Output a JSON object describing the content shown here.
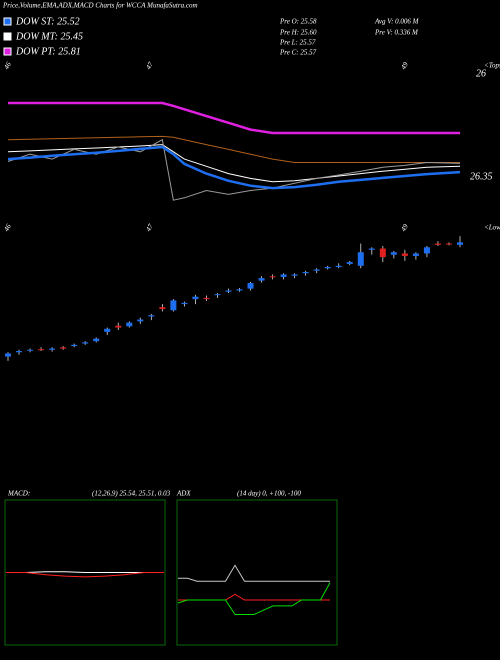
{
  "chart_data": [
    {
      "type": "line",
      "title": "Price,Volume,EMA,ADX,MACD Charts for WCCA MunafaSutra.com",
      "info": [
        "Pre  O: 25.58",
        "Pre  H: 25.60",
        "Pre  L: 25.57",
        "Pre  C: 25.57",
        "Avg V: 0.006  M",
        "Pre  V: 0.336  M"
      ],
      "x_labels": [
        "46",
        "47",
        "49"
      ],
      "right_labels": [
        "<Tops",
        "26",
        "26.35"
      ],
      "x": [
        0,
        2,
        4,
        6,
        8,
        10,
        12,
        14,
        15,
        16,
        18,
        20,
        22,
        24,
        26,
        28,
        30,
        32,
        34,
        36,
        38,
        41
      ],
      "ylim": [
        24.0,
        27.0
      ],
      "series": [
        {
          "name": "DOW PT: 25.81",
          "color": "#e020e0",
          "values": [
            26.11,
            26.11,
            26.11,
            26.11,
            26.11,
            26.11,
            26.11,
            26.11,
            26.05,
            25.98,
            25.84,
            25.7,
            25.56,
            25.49,
            25.49,
            25.49,
            25.49,
            25.49,
            25.49,
            25.49,
            25.49,
            25.49
          ]
        },
        {
          "color": "#b0601a",
          "values": [
            25.35,
            25.36,
            25.37,
            25.38,
            25.39,
            25.4,
            25.41,
            25.42,
            25.4,
            25.35,
            25.25,
            25.15,
            25.05,
            24.95,
            24.88,
            24.88,
            24.88,
            24.88,
            24.88,
            24.88,
            24.88,
            24.88
          ]
        },
        {
          "name": "DOW MT: 25.45",
          "color": "#ffffff",
          "values": [
            25.1,
            25.12,
            25.14,
            25.16,
            25.18,
            25.2,
            25.22,
            25.25,
            25.1,
            24.95,
            24.8,
            24.65,
            24.55,
            24.48,
            24.5,
            24.55,
            24.6,
            24.65,
            24.7,
            24.74,
            24.78,
            24.8
          ]
        },
        {
          "color": "#9a9a9a",
          "values": [
            24.9,
            25.05,
            24.95,
            25.15,
            25.05,
            25.2,
            25.1,
            25.35,
            24.1,
            24.15,
            24.3,
            24.22,
            24.3,
            24.35,
            24.45,
            24.55,
            24.62,
            24.7,
            24.78,
            24.82,
            24.88,
            24.86
          ]
        },
        {
          "name": "DOW ST: 25.52",
          "color": "#1e6ef0",
          "values": [
            24.95,
            24.98,
            25.02,
            25.05,
            25.08,
            25.12,
            25.16,
            25.2,
            25.05,
            24.85,
            24.65,
            24.5,
            24.4,
            24.35,
            24.37,
            24.42,
            24.48,
            24.52,
            24.56,
            24.6,
            24.64,
            24.68
          ]
        }
      ]
    },
    {
      "type": "candlestick",
      "x_labels": [
        "46",
        "47",
        "49"
      ],
      "right_labels": [
        "<Lows"
      ],
      "ylim": [
        24.2,
        26.5
      ],
      "up_color": "#1e6ef0",
      "down_color": "#e02020",
      "open": [
        24.45,
        24.52,
        24.55,
        24.57,
        24.56,
        24.6,
        24.62,
        24.66,
        24.7,
        24.85,
        24.95,
        24.94,
        25.02,
        25.1,
        25.25,
        25.2,
        25.3,
        25.38,
        25.4,
        25.45,
        25.5,
        25.52,
        25.55,
        25.68,
        25.75,
        25.74,
        25.76,
        25.8,
        25.84,
        25.88,
        25.9,
        25.95,
        25.92,
        26.18,
        26.2,
        26.1,
        26.12,
        26.08,
        26.12,
        26.28,
        26.28,
        26.26
      ],
      "high": [
        24.52,
        24.56,
        24.58,
        24.6,
        24.6,
        24.62,
        24.66,
        24.7,
        24.76,
        24.92,
        25.0,
        25.02,
        25.08,
        25.14,
        25.3,
        25.38,
        25.34,
        25.45,
        25.44,
        25.48,
        25.55,
        25.56,
        25.66,
        25.75,
        25.78,
        25.8,
        25.8,
        25.84,
        25.88,
        25.92,
        25.96,
        26.0,
        26.28,
        26.22,
        26.24,
        26.16,
        26.18,
        26.14,
        26.24,
        26.32,
        26.3,
        26.4
      ],
      "low": [
        24.38,
        24.48,
        24.52,
        24.54,
        24.53,
        24.56,
        24.6,
        24.64,
        24.68,
        24.8,
        24.88,
        24.92,
        24.98,
        25.04,
        25.18,
        25.18,
        25.26,
        25.3,
        25.35,
        25.4,
        25.48,
        25.5,
        25.52,
        25.65,
        25.7,
        25.7,
        25.72,
        25.76,
        25.8,
        25.86,
        25.88,
        25.93,
        25.88,
        26.1,
        25.98,
        26.04,
        26.0,
        26.02,
        26.06,
        26.24,
        26.25,
        26.22
      ],
      "close": [
        24.5,
        24.54,
        24.56,
        24.56,
        24.58,
        24.58,
        24.64,
        24.68,
        24.74,
        24.9,
        24.92,
        25.0,
        25.05,
        25.12,
        25.22,
        25.36,
        25.32,
        25.42,
        25.38,
        25.46,
        25.52,
        25.54,
        25.64,
        25.72,
        25.74,
        25.78,
        25.78,
        25.82,
        25.86,
        25.9,
        25.92,
        25.98,
        26.14,
        26.2,
        26.06,
        26.14,
        26.08,
        26.12,
        26.22,
        26.26,
        26.27,
        26.3
      ]
    },
    {
      "type": "line",
      "title": "MACD:",
      "subtitle": "(12,26,9) 25.54, 25.51, 0.03",
      "x": [
        0,
        1,
        2,
        3,
        4,
        5,
        6,
        7,
        8
      ],
      "ylim": [
        -1,
        1
      ],
      "series": [
        {
          "color": "#ffffff",
          "values": [
            0.0,
            0.0,
            0.01,
            0.01,
            0.0,
            0.0,
            0.0,
            0.0,
            0.0
          ]
        },
        {
          "color": "#ff2020",
          "values": [
            0.0,
            0.0,
            -0.03,
            -0.05,
            -0.06,
            -0.05,
            -0.03,
            0.0,
            0.0
          ]
        }
      ]
    },
    {
      "type": "line",
      "title": "ADX",
      "subtitle": "(14 day) 0, +100, -100",
      "x": [
        0,
        1,
        2,
        3,
        4,
        5,
        6,
        7,
        8,
        9,
        10,
        11,
        12,
        13,
        14,
        15,
        16
      ],
      "ylim": [
        0,
        100
      ],
      "series": [
        {
          "color": "#ff2020",
          "values": [
            31,
            31,
            31,
            31,
            31,
            31,
            35,
            31,
            31,
            31,
            31,
            31,
            31,
            31,
            31,
            31,
            31
          ]
        },
        {
          "color": "#c8c8c8",
          "values": [
            46,
            46,
            44,
            44,
            44,
            44,
            55,
            44,
            44,
            44,
            44,
            44,
            44,
            44,
            44,
            44,
            44
          ]
        },
        {
          "color": "#00e000",
          "values": [
            29,
            31,
            31,
            31,
            31,
            31,
            21,
            21,
            21,
            24,
            27,
            27,
            27,
            31,
            31,
            31,
            43
          ]
        }
      ]
    }
  ]
}
